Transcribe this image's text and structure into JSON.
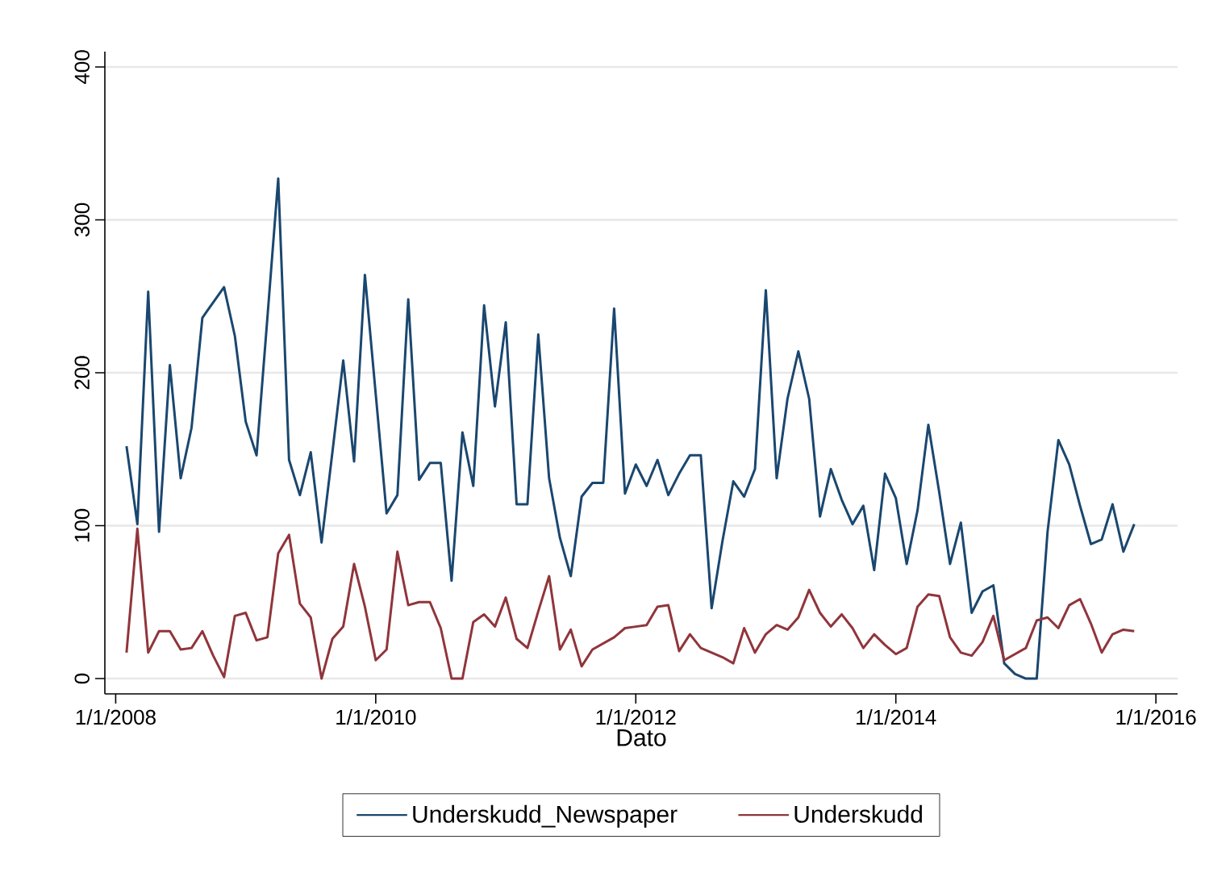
{
  "chart_data": {
    "type": "line",
    "xlabel": "Dato",
    "x": [
      "2008-02",
      "2008-03",
      "2008-04",
      "2008-05",
      "2008-06",
      "2008-07",
      "2008-08",
      "2008-09",
      "2008-10",
      "2008-11",
      "2008-12",
      "2009-01",
      "2009-02",
      "2009-03",
      "2009-04",
      "2009-05",
      "2009-06",
      "2009-07",
      "2009-08",
      "2009-09",
      "2009-10",
      "2009-11",
      "2009-12",
      "2010-01",
      "2010-02",
      "2010-03",
      "2010-04",
      "2010-05",
      "2010-06",
      "2010-07",
      "2010-08",
      "2010-09",
      "2010-10",
      "2010-11",
      "2010-12",
      "2011-01",
      "2011-02",
      "2011-03",
      "2011-04",
      "2011-05",
      "2011-06",
      "2011-07",
      "2011-08",
      "2011-09",
      "2011-10",
      "2011-11",
      "2011-12",
      "2012-01",
      "2012-02",
      "2012-03",
      "2012-04",
      "2012-05",
      "2012-06",
      "2012-07",
      "2012-08",
      "2012-09",
      "2012-10",
      "2012-11",
      "2012-12",
      "2013-01",
      "2013-02",
      "2013-03",
      "2013-04",
      "2013-05",
      "2013-06",
      "2013-07",
      "2013-08",
      "2013-09",
      "2013-10",
      "2013-11",
      "2013-12",
      "2014-01",
      "2014-02",
      "2014-03",
      "2014-04",
      "2014-05",
      "2014-06",
      "2014-07",
      "2014-08",
      "2014-09",
      "2014-10",
      "2014-11",
      "2014-12",
      "2015-01",
      "2015-02",
      "2015-03",
      "2015-04",
      "2015-05",
      "2015-06",
      "2015-07",
      "2015-08",
      "2015-09",
      "2015-10",
      "2015-11"
    ],
    "series": [
      {
        "name": "Underskudd_Newspaper",
        "color": "#1a476f",
        "values": [
          152,
          101,
          253,
          96,
          205,
          131,
          164,
          236,
          246,
          256,
          224,
          168,
          146,
          236,
          327,
          143,
          120,
          148,
          89,
          148,
          208,
          142,
          264,
          186,
          108,
          120,
          248,
          130,
          141,
          141,
          64,
          161,
          126,
          244,
          178,
          233,
          114,
          114,
          225,
          131,
          92,
          67,
          119,
          128,
          128,
          242,
          121,
          140,
          126,
          143,
          120,
          134,
          146,
          146,
          46,
          90,
          129,
          119,
          137,
          254,
          131,
          183,
          214,
          183,
          106,
          137,
          117,
          101,
          113,
          71,
          134,
          118,
          75,
          110,
          166,
          122,
          75,
          102,
          43,
          57,
          61,
          10,
          3,
          0,
          0,
          96,
          156,
          140,
          113,
          88,
          91,
          114,
          83,
          101
        ]
      },
      {
        "name": "Underskudd",
        "color": "#90353b",
        "values": [
          17,
          98,
          17,
          31,
          31,
          19,
          20,
          31,
          15,
          1,
          41,
          43,
          25,
          27,
          82,
          94,
          49,
          40,
          0,
          26,
          34,
          75,
          47,
          12,
          19,
          83,
          48,
          50,
          50,
          33,
          0,
          0,
          37,
          42,
          34,
          53,
          26,
          20,
          44,
          67,
          19,
          32,
          8,
          19,
          23,
          27,
          33,
          34,
          35,
          47,
          48,
          18,
          29,
          20,
          17,
          14,
          10,
          33,
          17,
          29,
          35,
          32,
          40,
          58,
          43,
          34,
          42,
          33,
          20,
          29,
          22,
          16,
          20,
          47,
          55,
          54,
          27,
          17,
          15,
          24,
          41,
          12,
          16,
          20,
          38,
          40,
          33,
          48,
          52,
          36,
          17,
          29,
          32,
          31
        ]
      }
    ],
    "xlim": [
      "2007-12",
      "2016-03"
    ],
    "xticks": [
      {
        "value": "2008-01-01",
        "label": "1/1/2008"
      },
      {
        "value": "2010-01-01",
        "label": "1/1/2010"
      },
      {
        "value": "2012-01-01",
        "label": "1/1/2012"
      },
      {
        "value": "2014-01-01",
        "label": "1/1/2014"
      },
      {
        "value": "2016-01-01",
        "label": "1/1/2016"
      }
    ],
    "ylim": [
      -10,
      410
    ],
    "yticks": [
      0,
      100,
      200,
      300,
      400
    ],
    "grid": "y",
    "legend": "bottom",
    "line_style": "solid"
  }
}
